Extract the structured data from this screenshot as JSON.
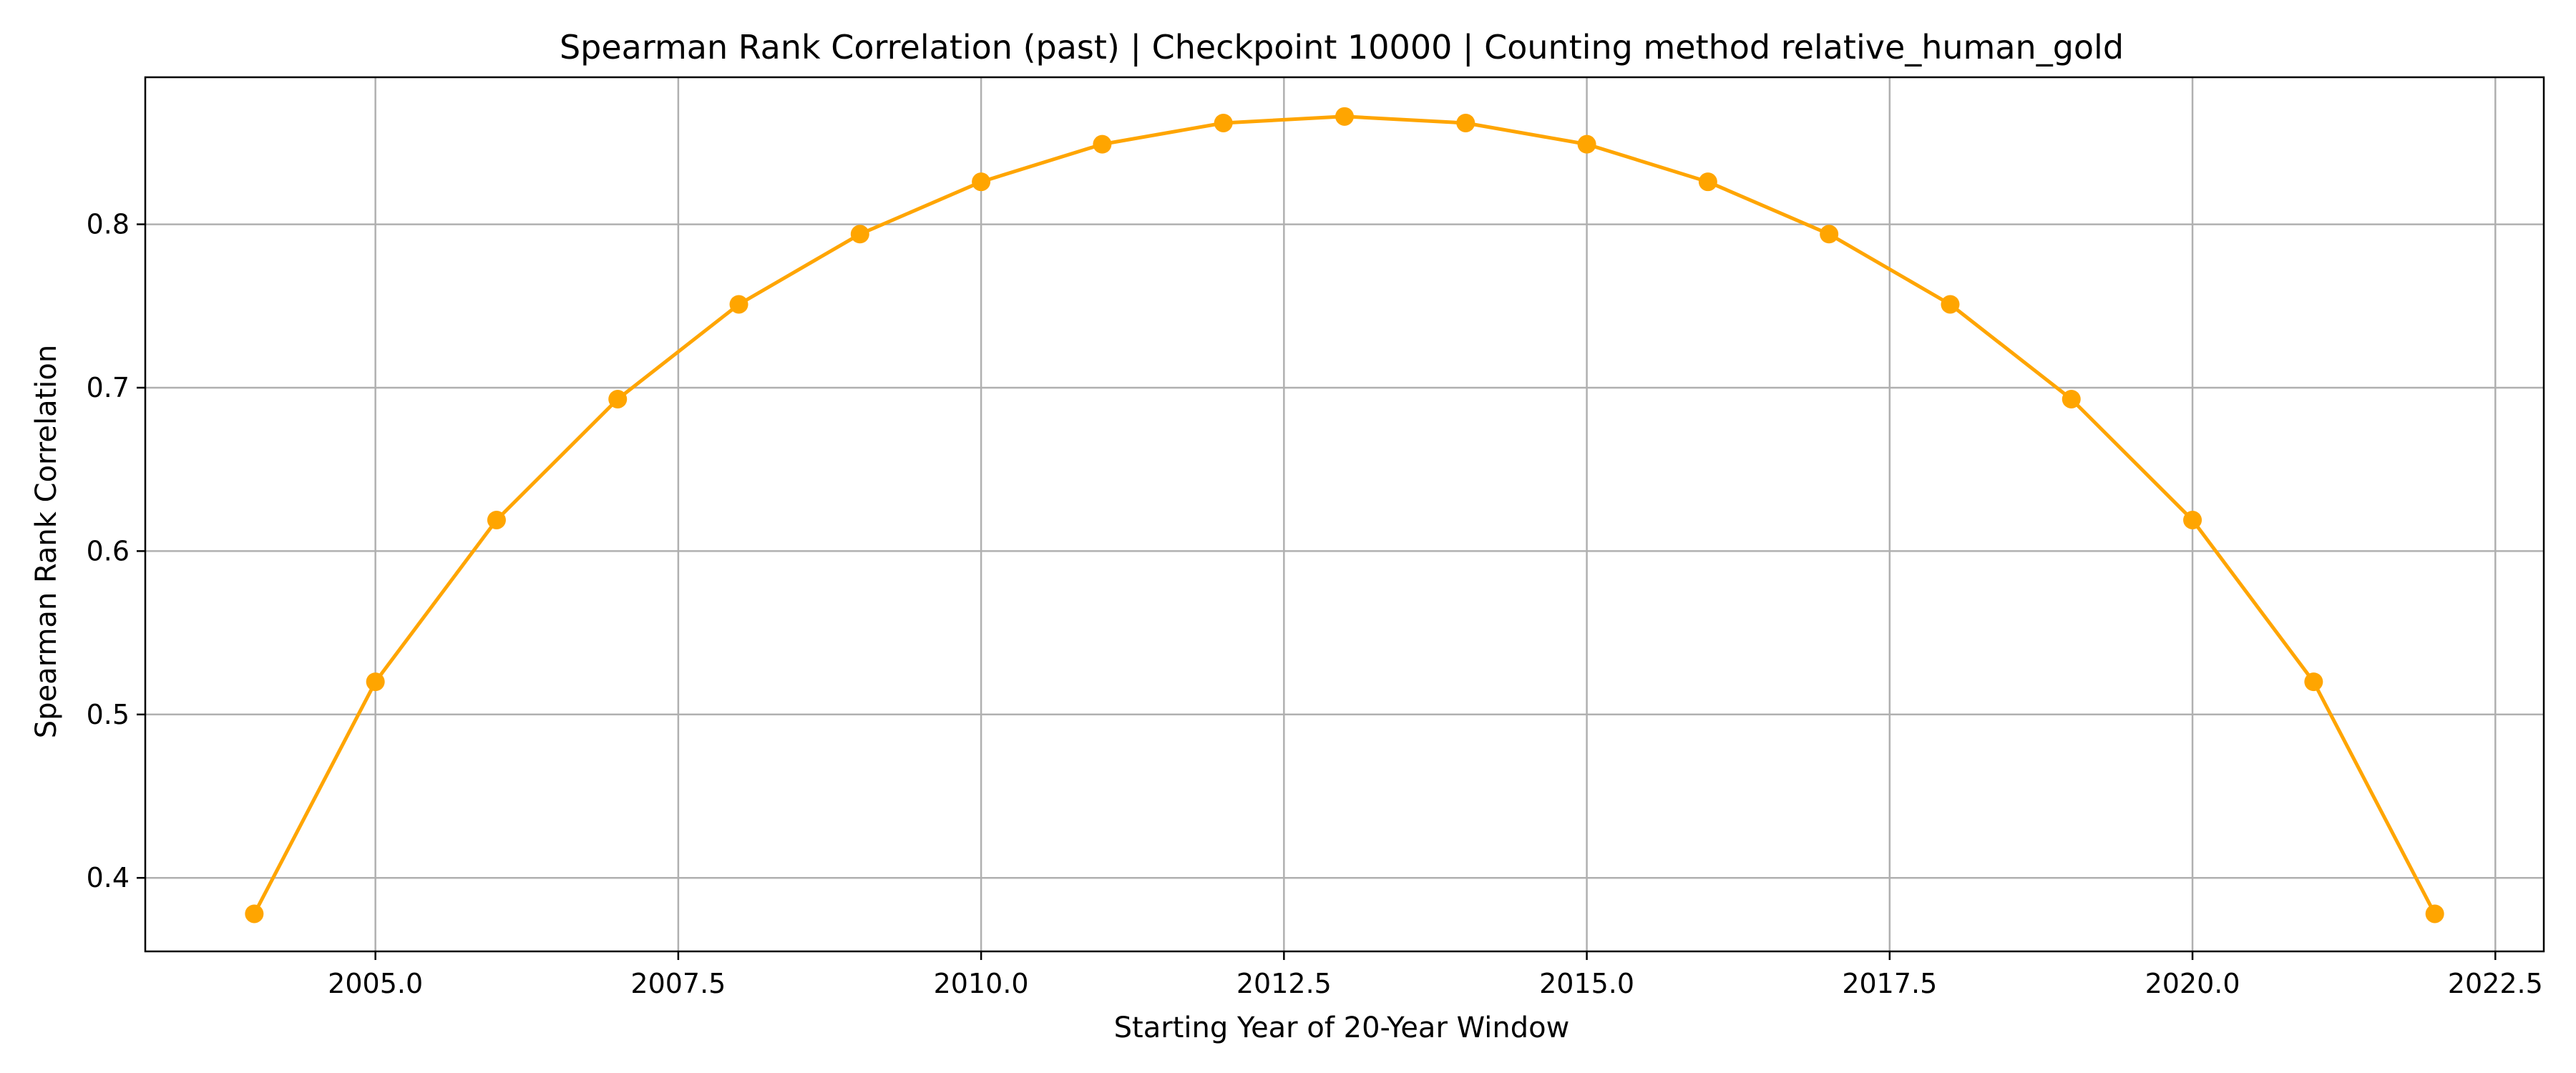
{
  "chart_data": {
    "type": "line",
    "title": "Spearman Rank Correlation (past) | Checkpoint 10000 | Counting method relative_human_gold",
    "xlabel": "Starting Year of 20-Year Window",
    "ylabel": "Spearman Rank Correlation",
    "xlim": [
      2003.1,
      2022.9
    ],
    "ylim": [
      0.355,
      0.89
    ],
    "xticks": [
      2005.0,
      2007.5,
      2010.0,
      2012.5,
      2015.0,
      2017.5,
      2020.0,
      2022.5
    ],
    "xtick_labels": [
      "2005.0",
      "2007.5",
      "2010.0",
      "2012.5",
      "2015.0",
      "2017.5",
      "2020.0",
      "2022.5"
    ],
    "yticks": [
      0.4,
      0.5,
      0.6,
      0.7,
      0.8
    ],
    "ytick_labels": [
      "0.4",
      "0.5",
      "0.6",
      "0.7",
      "0.8"
    ],
    "grid": true,
    "legend": "none",
    "series": [
      {
        "color": "#FFA500",
        "marker": "circle",
        "x": [
          2004,
          2005,
          2006,
          2007,
          2008,
          2009,
          2010,
          2011,
          2012,
          2013,
          2014,
          2015,
          2016,
          2017,
          2018,
          2019,
          2020,
          2021,
          2022
        ],
        "y": [
          0.378,
          0.52,
          0.619,
          0.693,
          0.751,
          0.794,
          0.826,
          0.849,
          0.862,
          0.866,
          0.862,
          0.849,
          0.826,
          0.794,
          0.751,
          0.693,
          0.619,
          0.52,
          0.378
        ]
      }
    ]
  }
}
